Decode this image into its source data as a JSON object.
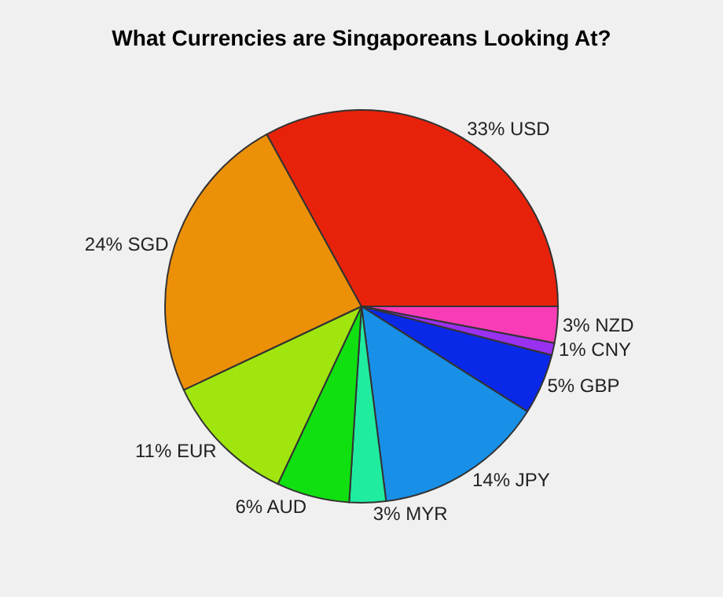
{
  "chart_data": {
    "type": "pie",
    "title": "What Currencies are Singaporeans Looking At?",
    "categories": [
      "USD",
      "SGD",
      "EUR",
      "AUD",
      "MYR",
      "JPY",
      "GBP",
      "CNY",
      "NZD"
    ],
    "values": [
      33,
      24,
      11,
      6,
      3,
      14,
      5,
      1,
      3
    ],
    "value_labels": [
      "33%",
      "24%",
      "11%",
      "6%",
      "3%",
      "14%",
      "5%",
      "1%",
      "3%"
    ],
    "colors": [
      "#e8220a",
      "#ec9008",
      "#a0e60e",
      "#10e010",
      "#20eca0",
      "#1890e8",
      "#0a28e8",
      "#9a30f0",
      "#f83cb8"
    ],
    "legend": false
  }
}
